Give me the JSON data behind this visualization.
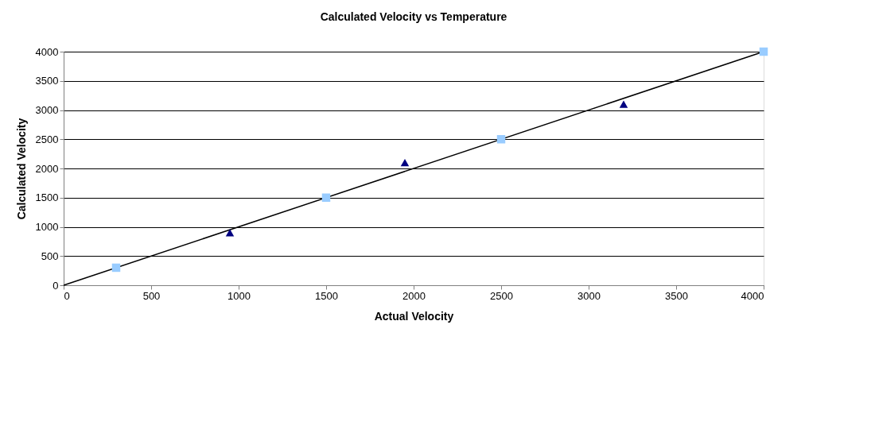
{
  "chart_data": {
    "type": "scatter",
    "title": "Calculated Velocity vs Temperature",
    "xlabel": "Actual Velocity",
    "ylabel": "Calculated Velocity",
    "xlim": [
      0,
      4000
    ],
    "xticks": [
      0,
      500,
      1000,
      1500,
      2000,
      2500,
      3000,
      3500,
      4000
    ],
    "ylim": [
      0,
      4000
    ],
    "yticks": [
      0,
      500,
      1000,
      1500,
      2000,
      2500,
      3000,
      3500,
      4000
    ],
    "grid": "y",
    "series": [
      {
        "type": "line",
        "color": "#000000",
        "marker": "none",
        "line_style": "solid",
        "x": [
          0,
          4000
        ],
        "values": [
          0,
          4000
        ]
      },
      {
        "color": "#99ccff",
        "marker": "square",
        "x": [
          300,
          1500,
          2500,
          4000
        ],
        "values": [
          300,
          1500,
          2500,
          4000
        ]
      },
      {
        "color": "#000080",
        "marker": "triangle",
        "x": [
          950,
          1950,
          3200
        ],
        "values": [
          900,
          2100,
          3100
        ]
      }
    ]
  }
}
